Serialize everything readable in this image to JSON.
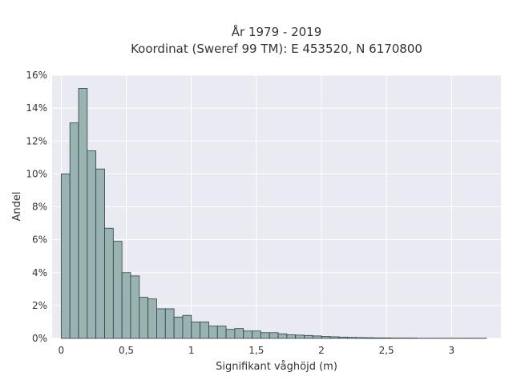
{
  "chart_data": {
    "type": "bar",
    "title": [
      "År 1979 - 2019",
      "Koordinat (Sweref 99 TM): E 453520, N 6170800"
    ],
    "xlabel": "Signifikant våghöjd (m)",
    "ylabel": "Andel",
    "xlim": [
      -0.07,
      3.38
    ],
    "ylim": [
      0,
      16
    ],
    "x_ticks": [
      0,
      0.5,
      1,
      1.5,
      2,
      2.5,
      3
    ],
    "x_tick_labels": [
      "0",
      "0,5",
      "1",
      "1,5",
      "2",
      "2,5",
      "3"
    ],
    "y_ticks": [
      0,
      2,
      4,
      6,
      8,
      10,
      12,
      14,
      16
    ],
    "y_tick_labels": [
      "0%",
      "2%",
      "4%",
      "6%",
      "8%",
      "10%",
      "12%",
      "14%",
      "16%"
    ],
    "grid": true,
    "bin_start": 0,
    "bin_width": 0.0667,
    "values": [
      10.0,
      13.1,
      15.2,
      11.4,
      10.3,
      6.7,
      5.9,
      4.0,
      3.8,
      2.5,
      2.4,
      1.8,
      1.8,
      1.3,
      1.4,
      1.0,
      1.0,
      0.75,
      0.75,
      0.55,
      0.6,
      0.45,
      0.45,
      0.35,
      0.35,
      0.28,
      0.22,
      0.2,
      0.18,
      0.15,
      0.12,
      0.1,
      0.08,
      0.06,
      0.05,
      0.04,
      0.03,
      0.03,
      0.02,
      0.02,
      0.02,
      0.01,
      0.01,
      0.01,
      0.01,
      0.01,
      0.01,
      0.01,
      0.01
    ],
    "colors": {
      "bar_fill": "#99b3b3",
      "bar_edge": "#2f3f3f",
      "plot_background": "#eaeaf2",
      "grid": "#ffffff",
      "text": "#333333"
    }
  }
}
